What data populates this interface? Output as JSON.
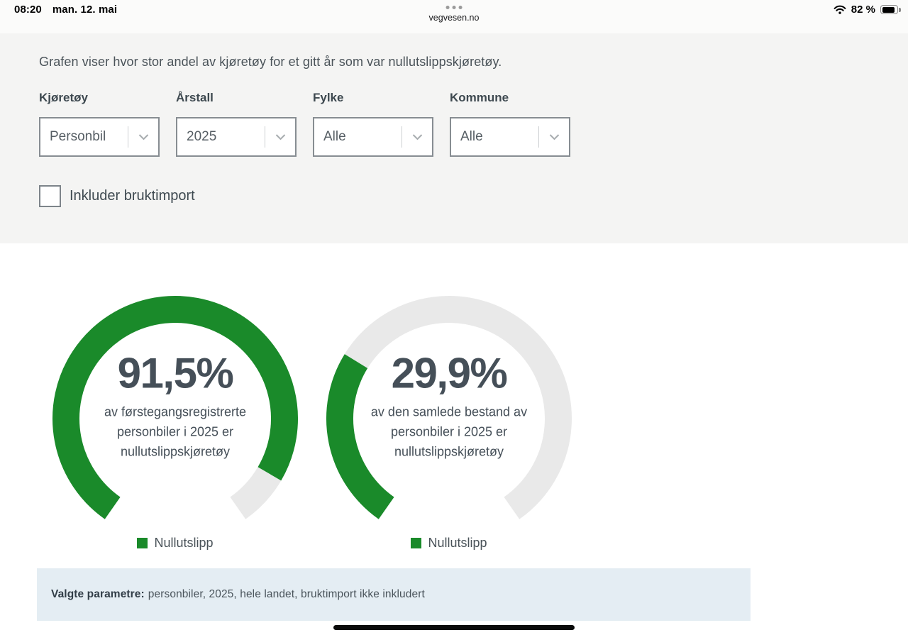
{
  "status_bar": {
    "time": "08:20",
    "date": "man. 12. mai",
    "site": "vegvesen.no",
    "battery_percent": "82 %"
  },
  "filters": {
    "description": "Grafen viser hvor stor andel av kjøretøy for et gitt år som var nullutslippskjøretøy.",
    "fields": [
      {
        "label": "Kjøretøy",
        "value": "Personbil"
      },
      {
        "label": "Årstall",
        "value": "2025"
      },
      {
        "label": "Fylke",
        "value": "Alle"
      },
      {
        "label": "Kommune",
        "value": "Alle"
      }
    ],
    "checkbox": {
      "label": "Inkluder bruktimport",
      "checked": false
    }
  },
  "chart_data": [
    {
      "type": "gauge",
      "value": 91.5,
      "value_label": "91,5%",
      "description": "av førstegangsregistrerte personbiler i 2025 er nullutslippskjøretøy",
      "legend": "Nullutslipp",
      "color": "#1a8a2a",
      "track_color": "#e9e9e9",
      "start_angle": 215,
      "sweep": 290
    },
    {
      "type": "gauge",
      "value": 29.9,
      "value_label": "29,9%",
      "description": "av den samlede bestand av personbiler i 2025 er nullutslippskjøretøy",
      "legend": "Nullutslipp",
      "color": "#1a8a2a",
      "track_color": "#e9e9e9",
      "start_angle": 215,
      "sweep": 290
    }
  ],
  "summary": {
    "label": "Valgte parametre:",
    "text": "personbiler, 2025, hele landet, bruktimport ikke inkludert"
  }
}
